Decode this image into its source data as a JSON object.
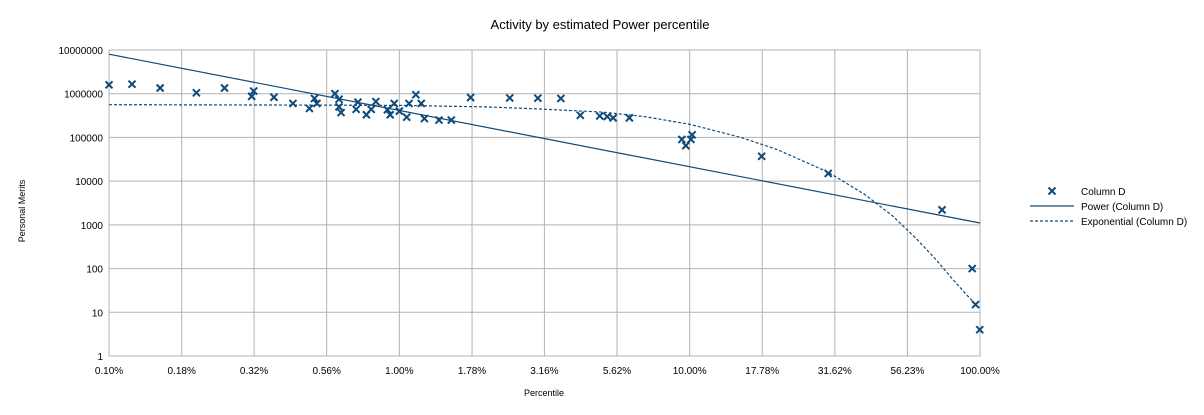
{
  "chart_data": {
    "type": "scatter",
    "title": "Activity by estimated Power percentile",
    "xlabel": "Percentile",
    "ylabel": "Personal Merits",
    "x_scale": "log",
    "y_scale": "log",
    "xlim": [
      0.1,
      100
    ],
    "ylim": [
      1,
      10000000
    ],
    "x_ticks": [
      0.1,
      0.178,
      0.316,
      0.562,
      1.0,
      1.78,
      3.16,
      5.62,
      10.0,
      17.78,
      31.62,
      56.23,
      100.0
    ],
    "x_tick_labels": [
      "0.10%",
      "0.18%",
      "0.32%",
      "0.56%",
      "1.00%",
      "1.78%",
      "3.16%",
      "5.62%",
      "10.00%",
      "17.78%",
      "31.62%",
      "56.23%",
      "100.00%"
    ],
    "y_ticks": [
      1,
      10,
      100,
      1000,
      10000,
      100000,
      1000000,
      10000000
    ],
    "y_tick_labels": [
      "1",
      "10",
      "100",
      "1000",
      "10000",
      "100000",
      "1000000",
      "10000000"
    ],
    "grid": true,
    "legend_position": "right",
    "series": [
      {
        "name": "Column D",
        "kind": "scatter",
        "marker": "x",
        "color": "#0e4a7a",
        "points": [
          [
            0.1,
            1600000
          ],
          [
            0.12,
            1650000
          ],
          [
            0.15,
            1350000
          ],
          [
            0.2,
            1050000
          ],
          [
            0.25,
            1350000
          ],
          [
            0.31,
            870000
          ],
          [
            0.315,
            1150000
          ],
          [
            0.37,
            830000
          ],
          [
            0.43,
            600000
          ],
          [
            0.49,
            460000
          ],
          [
            0.51,
            780000
          ],
          [
            0.52,
            600000
          ],
          [
            0.6,
            1000000
          ],
          [
            0.62,
            750000
          ],
          [
            0.62,
            500000
          ],
          [
            0.63,
            370000
          ],
          [
            0.71,
            440000
          ],
          [
            0.72,
            640000
          ],
          [
            0.77,
            330000
          ],
          [
            0.8,
            440000
          ],
          [
            0.83,
            660000
          ],
          [
            0.91,
            430000
          ],
          [
            0.93,
            330000
          ],
          [
            0.96,
            600000
          ],
          [
            1.0,
            400000
          ],
          [
            1.06,
            290000
          ],
          [
            1.08,
            600000
          ],
          [
            1.14,
            950000
          ],
          [
            1.19,
            600000
          ],
          [
            1.22,
            270000
          ],
          [
            1.37,
            250000
          ],
          [
            1.51,
            250000
          ],
          [
            1.76,
            820000
          ],
          [
            2.4,
            800000
          ],
          [
            3.0,
            790000
          ],
          [
            3.6,
            780000
          ],
          [
            4.2,
            320000
          ],
          [
            4.9,
            310000
          ],
          [
            5.2,
            300000
          ],
          [
            5.45,
            280000
          ],
          [
            6.2,
            280000
          ],
          [
            9.4,
            90000
          ],
          [
            9.7,
            65000
          ],
          [
            10.1,
            90000
          ],
          [
            10.2,
            115000
          ],
          [
            17.7,
            37000
          ],
          [
            30.0,
            15000
          ],
          [
            74.0,
            2200
          ],
          [
            94.0,
            100
          ],
          [
            96.5,
            15
          ],
          [
            99.8,
            4
          ]
        ]
      },
      {
        "name": "Power (Column D)",
        "kind": "line",
        "style": "solid",
        "color": "#0e4a7a",
        "points": [
          [
            0.1,
            8000000
          ],
          [
            100,
            1100
          ]
        ]
      },
      {
        "name": "Exponential (Column D)",
        "kind": "line",
        "style": "dashed",
        "color": "#0e4a7a",
        "points": [
          [
            0.1,
            560000
          ],
          [
            0.5,
            550000
          ],
          [
            1.0,
            540000
          ],
          [
            2.0,
            500000
          ],
          [
            3.0,
            450000
          ],
          [
            5.0,
            380000
          ],
          [
            7.0,
            300000
          ],
          [
            10.0,
            200000
          ],
          [
            15.0,
            100000
          ],
          [
            20.0,
            53000
          ],
          [
            30.0,
            16000
          ],
          [
            40.0,
            5000
          ],
          [
            50.0,
            1600
          ],
          [
            60.0,
            500
          ],
          [
            70.0,
            170
          ],
          [
            80.0,
            60
          ],
          [
            90.0,
            25
          ],
          [
            100.0,
            12
          ]
        ]
      }
    ]
  }
}
